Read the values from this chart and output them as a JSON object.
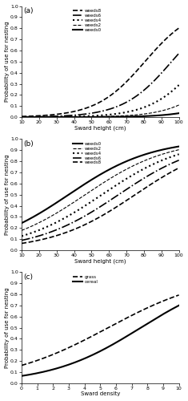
{
  "panel_a": {
    "label": "(a)",
    "xlabel": "Sward height (cm)",
    "ylabel": "Probability of use for nesting",
    "xlim": [
      10,
      100
    ],
    "ylim": [
      0.0,
      1.0
    ],
    "xticks": [
      10,
      20,
      30,
      40,
      50,
      60,
      70,
      80,
      90,
      100
    ],
    "yticks": [
      0.0,
      0.1,
      0.2,
      0.3,
      0.4,
      0.5,
      0.6,
      0.7,
      0.8,
      0.9,
      1.0
    ],
    "lines": [
      {
        "label": "weeds8",
        "style": "--",
        "lw": 1.2,
        "intercept": -5.8,
        "slope": 0.072
      },
      {
        "label": "weeds6",
        "style": "-.",
        "lw": 1.2,
        "intercept": -6.9,
        "slope": 0.072
      },
      {
        "label": "weeds4",
        "style": ":",
        "lw": 1.5,
        "intercept": -8.1,
        "slope": 0.072
      },
      {
        "label": "weeds2",
        "style": "--",
        "lw": 0.8,
        "intercept": -9.3,
        "slope": 0.072
      },
      {
        "label": "weeds0",
        "style": "-",
        "lw": 1.5,
        "intercept": -10.5,
        "slope": 0.072
      }
    ]
  },
  "panel_b": {
    "label": "(b)",
    "xlabel": "Sward height (cm)",
    "ylabel": "Probability of use for nesting",
    "xlim": [
      10,
      100
    ],
    "ylim": [
      0.0,
      1.0
    ],
    "xticks": [
      10,
      20,
      30,
      40,
      50,
      60,
      70,
      80,
      90,
      100
    ],
    "yticks": [
      0.0,
      0.1,
      0.2,
      0.3,
      0.4,
      0.5,
      0.6,
      0.7,
      0.8,
      0.9,
      1.0
    ],
    "lines": [
      {
        "label": "weeds0",
        "style": "-",
        "lw": 1.5,
        "intercept": -1.55,
        "slope": 0.042
      },
      {
        "label": "weeds2",
        "style": "--",
        "lw": 0.8,
        "intercept": -1.95,
        "slope": 0.042
      },
      {
        "label": "weeds4",
        "style": ":",
        "lw": 1.5,
        "intercept": -2.35,
        "slope": 0.042
      },
      {
        "label": "weeds6",
        "style": "-.",
        "lw": 1.2,
        "intercept": -2.75,
        "slope": 0.042
      },
      {
        "label": "weeds8",
        "style": "--",
        "lw": 1.2,
        "intercept": -3.15,
        "slope": 0.042
      }
    ]
  },
  "panel_c": {
    "label": "(c)",
    "xlabel": "Sward density",
    "ylabel": "Probability of use for nesting",
    "xlim": [
      0,
      10
    ],
    "ylim": [
      0.0,
      1.0
    ],
    "xticks": [
      0,
      1,
      2,
      3,
      4,
      5,
      6,
      7,
      8,
      9,
      10
    ],
    "yticks": [
      0.0,
      0.1,
      0.2,
      0.3,
      0.4,
      0.5,
      0.6,
      0.7,
      0.8,
      0.9,
      1.0
    ],
    "lines": [
      {
        "label": "grass",
        "style": "--",
        "lw": 1.2,
        "intercept": -1.65,
        "slope": 0.3
      },
      {
        "label": "cereal",
        "style": "-",
        "lw": 1.5,
        "intercept": -2.65,
        "slope": 0.35
      }
    ]
  }
}
